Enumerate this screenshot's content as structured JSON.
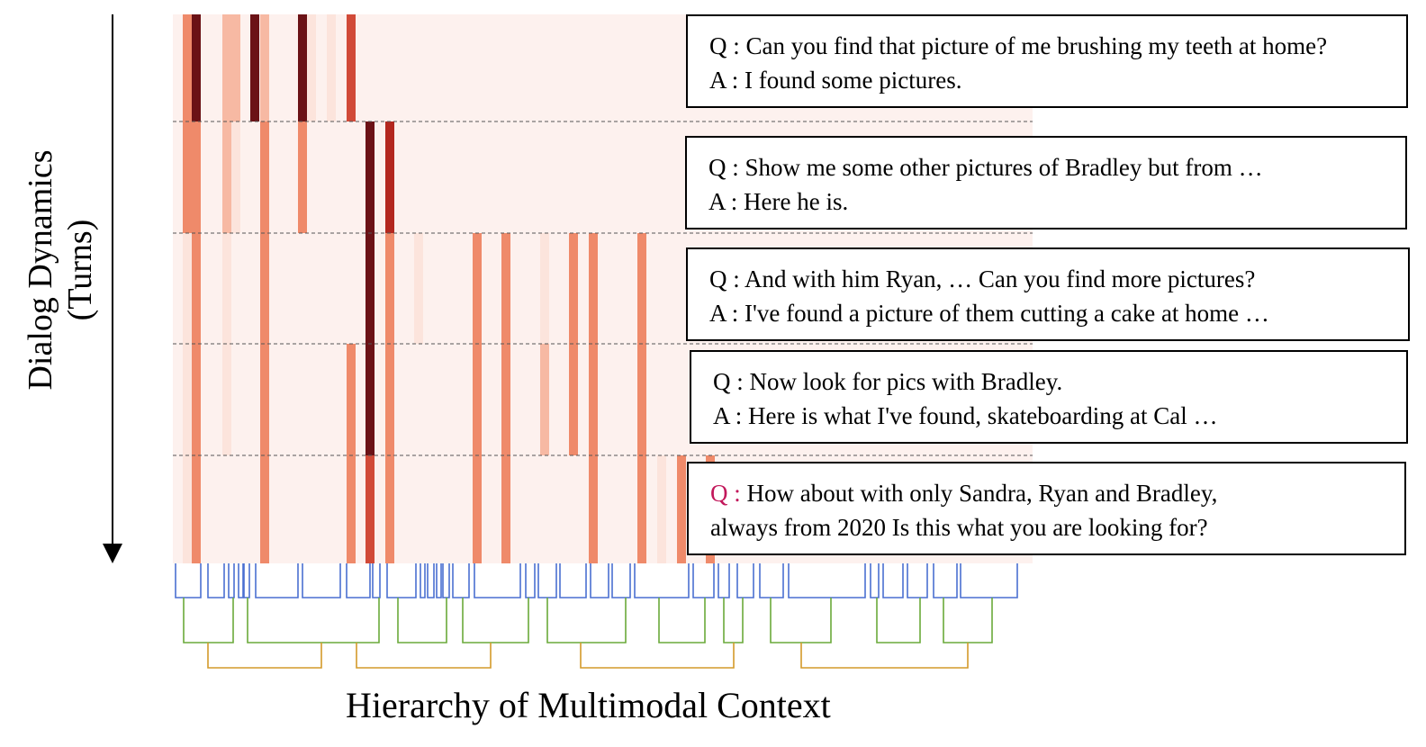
{
  "figure": {
    "ylabel": [
      "Dialog Dynamics",
      "(Turns)"
    ],
    "xlabel": "Hierarchy of Multimodal Context"
  },
  "colors": {
    "background_tint": "#fdf1ee",
    "heat_scale": [
      "#fce4dc",
      "#f7b9a3",
      "#ef8a6a",
      "#d14a38",
      "#b3271f",
      "#6b1216"
    ],
    "level1_bracket": "#4a6fd1",
    "level2_bracket": "#6aaa3a",
    "level3_bracket": "#d49a2a",
    "question_highlight": "#c2185b"
  },
  "turns": [
    {
      "q_tag": "Q :",
      "q_text": " Can you find that picture of me brushing my teeth at home?",
      "a_tag": "A :",
      "a_text": " I found some pictures."
    },
    {
      "q_tag": "Q :",
      "q_text": " Show me some other pictures of Bradley but from …",
      "a_tag": "A :",
      "a_text": " Here he is."
    },
    {
      "q_tag": "Q :",
      "q_text": " And with him Ryan, … Can you find more pictures?",
      "a_tag": "A :",
      "a_text": " I've found a picture of them cutting a cake at home …"
    },
    {
      "q_tag": "Q :",
      "q_text": " Now look for pics with Bradley.",
      "a_tag": "A :",
      "a_text": " Here is what I've found, skateboarding at Cal …"
    },
    {
      "q_tag": "Q :",
      "q_text": " How about with only Sandra, Ryan and Bradley,",
      "a_tag": "",
      "a_text": "always from 2020 Is this what you are looking for?"
    }
  ],
  "chart_data": {
    "type": "heatmap",
    "rows": 5,
    "columns": 88,
    "intensity_scale": "0 = lightest, 6 = darkest",
    "cells": [
      {
        "col": 1,
        "vals": [
          4,
          3,
          3,
          3,
          3
        ]
      },
      {
        "col": 2,
        "vals": [
          6,
          4,
          4,
          4,
          4
        ]
      },
      {
        "col": 5,
        "vals": [
          2,
          2,
          1,
          1,
          0
        ]
      },
      {
        "col": 6,
        "vals": [
          3,
          3,
          2,
          2,
          0
        ]
      },
      {
        "col": 7,
        "vals": [
          2,
          1,
          0,
          0,
          0
        ]
      },
      {
        "col": 8,
        "vals": [
          0,
          0,
          0,
          0,
          0
        ]
      },
      {
        "col": 9,
        "vals": [
          0,
          0,
          0,
          0,
          0
        ]
      },
      {
        "col": 10,
        "vals": [
          0,
          0,
          0,
          0,
          0
        ]
      },
      {
        "col": 11,
        "vals": [
          6,
          3,
          0,
          0,
          0
        ]
      },
      {
        "col": 12,
        "vals": [
          1,
          0,
          0,
          0,
          0
        ]
      },
      {
        "col": 13,
        "vals": [
          0,
          0,
          0,
          0,
          0
        ]
      },
      {
        "col": 14,
        "vals": [
          0,
          0,
          0,
          0,
          0
        ]
      },
      {
        "col": 15,
        "vals": [
          2,
          4,
          4,
          4,
          4
        ]
      },
      {
        "col": 16,
        "vals": [
          0,
          0,
          0,
          0,
          0
        ]
      },
      {
        "col": 17,
        "vals": [
          0,
          0,
          0,
          0,
          0
        ]
      },
      {
        "col": 18,
        "vals": [
          0,
          0,
          0,
          0,
          0
        ]
      },
      {
        "col": 19,
        "vals": [
          0,
          0,
          0,
          0,
          0
        ]
      },
      {
        "col": 20,
        "vals": [
          0,
          0,
          0,
          0,
          0
        ]
      },
      {
        "col": 21,
        "vals": [
          0,
          0,
          0,
          0,
          0
        ]
      },
      {
        "col": 22,
        "vals": [
          0,
          0,
          0,
          0,
          0
        ]
      },
      {
        "col": 23,
        "vals": [
          0,
          0,
          0,
          0,
          0
        ]
      },
      {
        "col": 24,
        "vals": [
          0,
          0,
          0,
          0,
          0
        ]
      },
      {
        "col": 25,
        "vals": [
          0,
          0,
          0,
          0,
          0
        ]
      },
      {
        "col": 26,
        "vals": [
          0,
          0,
          0,
          0,
          0
        ]
      },
      {
        "col": 27,
        "vals": [
          0,
          0,
          0,
          0,
          0
        ]
      },
      {
        "col": 28,
        "vals": [
          0,
          0,
          0,
          0,
          0
        ]
      },
      {
        "col": 29,
        "vals": [
          0,
          0,
          0,
          0,
          0
        ]
      },
      {
        "col": 30,
        "vals": [
          0,
          0,
          0,
          0,
          0
        ]
      },
      {
        "col": 31,
        "vals": [
          0,
          0,
          0,
          0,
          0
        ]
      },
      {
        "col": 32,
        "vals": [
          0,
          0,
          0,
          0,
          0
        ]
      },
      {
        "col": 33,
        "vals": [
          0,
          0,
          0,
          0,
          0
        ]
      },
      {
        "col": 34,
        "vals": [
          0,
          0,
          0,
          0,
          0
        ]
      },
      {
        "col": 35,
        "vals": [
          0,
          0,
          0,
          0,
          0
        ]
      },
      {
        "col": 36,
        "vals": [
          0,
          0,
          0,
          0,
          0
        ]
      },
      {
        "col": 37,
        "vals": [
          0,
          0,
          0,
          0,
          0
        ]
      },
      {
        "col": 38,
        "vals": [
          0,
          0,
          0,
          0,
          0
        ]
      },
      {
        "col": 39,
        "vals": [
          0,
          0,
          0,
          0,
          0
        ]
      },
      {
        "col": 40,
        "vals": [
          0,
          0,
          0,
          0,
          0
        ]
      },
      {
        "col": 41,
        "vals": [
          0,
          0,
          0,
          0,
          0
        ]
      },
      {
        "col": 42,
        "vals": [
          0,
          0,
          0,
          0,
          0
        ]
      },
      {
        "col": 43,
        "vals": [
          0,
          0,
          0,
          0,
          0
        ]
      },
      {
        "col": 44,
        "vals": [
          0,
          0,
          0,
          0,
          0
        ]
      },
      {
        "col": 45,
        "vals": [
          0,
          0,
          0,
          0,
          0
        ]
      },
      {
        "col": 46,
        "vals": [
          0,
          0,
          0,
          0,
          0
        ]
      },
      {
        "col": 47,
        "vals": [
          0,
          0,
          0,
          0,
          0
        ]
      },
      {
        "col": 48,
        "vals": [
          0,
          0,
          0,
          0,
          0
        ]
      },
      {
        "col": 49,
        "vals": [
          0,
          0,
          0,
          0,
          0
        ]
      },
      {
        "col": 50,
        "vals": [
          0,
          0,
          0,
          0,
          0
        ]
      },
      {
        "col": 51,
        "vals": [
          0,
          0,
          0,
          0,
          0
        ]
      },
      {
        "col": 52,
        "vals": [
          0,
          0,
          0,
          0,
          0
        ]
      },
      {
        "col": 53,
        "vals": [
          0,
          0,
          0,
          0,
          0
        ]
      },
      {
        "col": 54,
        "vals": [
          0,
          0,
          0,
          0,
          0
        ]
      },
      {
        "col": 55,
        "vals": [
          0,
          0,
          0,
          0,
          0
        ]
      },
      {
        "col": 56,
        "vals": [
          0,
          0,
          0,
          0,
          0
        ]
      },
      {
        "col": 57,
        "vals": [
          0,
          0,
          0,
          0,
          0
        ]
      },
      {
        "col": 58,
        "vals": [
          0,
          0,
          0,
          0,
          0
        ]
      },
      {
        "col": 59,
        "vals": [
          0,
          0,
          0,
          0,
          0
        ]
      },
      {
        "col": 60,
        "vals": [
          0,
          0,
          0,
          0,
          0
        ]
      },
      {
        "col": 61,
        "vals": [
          0,
          0,
          0,
          0,
          0
        ]
      },
      {
        "col": 62,
        "vals": [
          0,
          0,
          0,
          0,
          0
        ]
      },
      {
        "col": 63,
        "vals": [
          0,
          0,
          0,
          0,
          0
        ]
      },
      {
        "col": 64,
        "vals": [
          0,
          0,
          0,
          0,
          0
        ]
      },
      {
        "col": 65,
        "vals": [
          0,
          0,
          0,
          0,
          0
        ]
      },
      {
        "col": 66,
        "vals": [
          0,
          0,
          0,
          0,
          0
        ]
      },
      {
        "col": 67,
        "vals": [
          0,
          0,
          0,
          0,
          0
        ]
      },
      {
        "col": 68,
        "vals": [
          0,
          0,
          0,
          0,
          0
        ]
      },
      {
        "col": 69,
        "vals": [
          0,
          0,
          0,
          0,
          0
        ]
      },
      {
        "col": 70,
        "vals": [
          0,
          0,
          0,
          0,
          0
        ]
      },
      {
        "col": 71,
        "vals": [
          0,
          0,
          0,
          0,
          0
        ]
      },
      {
        "col": 72,
        "vals": [
          0,
          0,
          0,
          0,
          0
        ]
      },
      {
        "col": 73,
        "vals": [
          0,
          0,
          0,
          0,
          0
        ]
      },
      {
        "col": 74,
        "vals": [
          0,
          0,
          0,
          0,
          0
        ]
      },
      {
        "col": 75,
        "vals": [
          0,
          0,
          0,
          0,
          0
        ]
      },
      {
        "col": 76,
        "vals": [
          0,
          0,
          0,
          0,
          0
        ]
      },
      {
        "col": 77,
        "vals": [
          0,
          0,
          0,
          0,
          0
        ]
      },
      {
        "col": 78,
        "vals": [
          0,
          0,
          0,
          0,
          0
        ]
      },
      {
        "col": 79,
        "vals": [
          0,
          0,
          0,
          0,
          0
        ]
      },
      {
        "col": 80,
        "vals": [
          0,
          0,
          0,
          0,
          0
        ]
      },
      {
        "col": 81,
        "vals": [
          0,
          0,
          0,
          0,
          0
        ]
      },
      {
        "col": 82,
        "vals": [
          0,
          0,
          0,
          0,
          0
        ]
      },
      {
        "col": 83,
        "vals": [
          0,
          0,
          0,
          0,
          0
        ]
      },
      {
        "col": 84,
        "vals": [
          0,
          0,
          0,
          0,
          0
        ]
      },
      {
        "col": 85,
        "vals": [
          0,
          0,
          0,
          0,
          0
        ]
      },
      {
        "col": 86,
        "vals": [
          0,
          0,
          0,
          0,
          0
        ]
      },
      {
        "col": 87,
        "vals": [
          0,
          0,
          0,
          0,
          0
        ]
      }
    ],
    "dense_columns": [
      {
        "x": 203,
        "vals": [
          3,
          3,
          1,
          1,
          1
        ]
      },
      {
        "x": 213,
        "vals": [
          6,
          3,
          3,
          3,
          3
        ]
      },
      {
        "x": 247,
        "vals": [
          2,
          2,
          1,
          1,
          0
        ]
      },
      {
        "x": 257,
        "vals": [
          2,
          1,
          0,
          0,
          0
        ]
      },
      {
        "x": 278,
        "vals": [
          6,
          0,
          0,
          0,
          0
        ]
      },
      {
        "x": 289,
        "vals": [
          2,
          3,
          3,
          3,
          3
        ]
      },
      {
        "x": 331,
        "vals": [
          6,
          3,
          0,
          0,
          0
        ]
      },
      {
        "x": 341,
        "vals": [
          1,
          0,
          0,
          0,
          0
        ]
      },
      {
        "x": 363,
        "vals": [
          1,
          0,
          0,
          0,
          0
        ]
      },
      {
        "x": 385,
        "vals": [
          4,
          0,
          0,
          3,
          3
        ]
      },
      {
        "x": 406,
        "vals": [
          0,
          6,
          6,
          6,
          4
        ]
      },
      {
        "x": 428,
        "vals": [
          0,
          5,
          3,
          3,
          3
        ]
      },
      {
        "x": 460,
        "vals": [
          0,
          0,
          1,
          0,
          0
        ]
      },
      {
        "x": 525,
        "vals": [
          0,
          0,
          3,
          3,
          3
        ]
      },
      {
        "x": 557,
        "vals": [
          0,
          0,
          3,
          3,
          3
        ]
      },
      {
        "x": 600,
        "vals": [
          0,
          0,
          1,
          2,
          0
        ]
      },
      {
        "x": 632,
        "vals": [
          0,
          0,
          3,
          3,
          0
        ]
      },
      {
        "x": 654,
        "vals": [
          0,
          0,
          3,
          3,
          3
        ]
      },
      {
        "x": 708,
        "vals": [
          0,
          0,
          3,
          3,
          3
        ]
      },
      {
        "x": 730,
        "vals": [
          0,
          0,
          0,
          0,
          1
        ]
      },
      {
        "x": 752,
        "vals": [
          0,
          0,
          0,
          0,
          3
        ]
      },
      {
        "x": 784,
        "vals": [
          0,
          0,
          0,
          0,
          3
        ]
      }
    ]
  }
}
